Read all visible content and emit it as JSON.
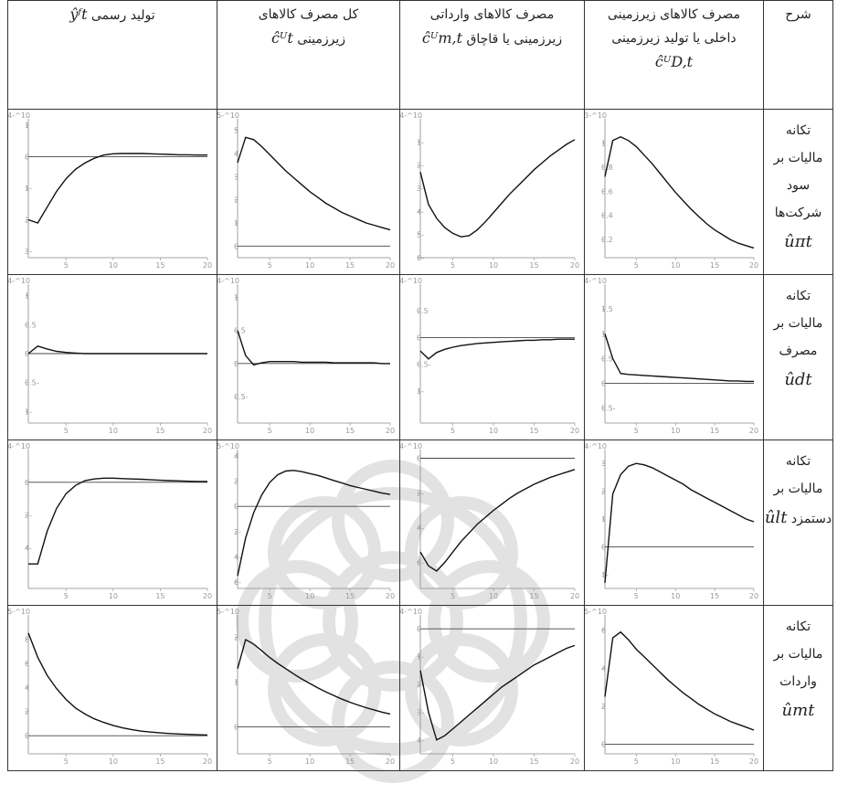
{
  "table": {
    "headers": {
      "description": "شرح",
      "domestic": {
        "lines": [
          "مصرف کالاهای زیرزمینی",
          "داخلی یا تولید زیرزمینی"
        ],
        "symbol": "ĉᵁD,t"
      },
      "imported": {
        "lines": [
          "مصرف کالاهای وارداتی",
          "زیرزمینی یا قاچاق"
        ],
        "symbol": "ĉᵁm,t"
      },
      "total": {
        "lines": [
          "کل مصرف کالاهای",
          "زیرزمینی"
        ],
        "symbol": "ĉᵁt"
      },
      "official": {
        "lines": [
          "تولید رسمی"
        ],
        "symbol": "ŷᶠt"
      }
    },
    "rows": [
      {
        "label_lines": [
          "تکانه",
          "مالیات بر",
          "سود",
          "شرکت‌ها"
        ],
        "symbol": "ûπt"
      },
      {
        "label_lines": [
          "تکانه",
          "مالیات بر",
          "مصرف"
        ],
        "symbol": "ûdt"
      },
      {
        "label_lines": [
          "تکانه",
          "مالیات بر",
          "دستمزد"
        ],
        "symbol": "ûlt"
      },
      {
        "label_lines": [
          "تکانه",
          "مالیات بر",
          "واردات"
        ],
        "symbol": "ûmt"
      }
    ]
  },
  "chart_data": [
    {
      "type": "line",
      "shock": "corporate profit tax",
      "variable": "domestic underground consumption",
      "scale": "10^-3",
      "x": [
        1,
        2,
        3,
        4,
        5,
        6,
        7,
        8,
        9,
        10,
        11,
        12,
        13,
        14,
        15,
        16,
        17,
        18,
        19,
        20
      ],
      "y": [
        0.72,
        1.02,
        1.05,
        1.02,
        0.97,
        0.9,
        0.83,
        0.75,
        0.67,
        0.59,
        0.52,
        0.45,
        0.39,
        0.33,
        0.28,
        0.24,
        0.2,
        0.17,
        0.15,
        0.13
      ],
      "ylim": [
        0.05,
        1.2
      ],
      "yticks": [
        0.2,
        0.4,
        0.6,
        0.8,
        1
      ],
      "xticks": [
        5,
        10,
        15,
        20
      ],
      "zero_line": false
    },
    {
      "type": "line",
      "shock": "corporate profit tax",
      "variable": "imported underground consumption",
      "scale": "10^-4",
      "x": [
        1,
        2,
        3,
        4,
        5,
        6,
        7,
        8,
        9,
        10,
        11,
        12,
        13,
        14,
        15,
        16,
        17,
        18,
        19,
        20
      ],
      "y": [
        -2.3,
        -3.7,
        -4.3,
        -4.7,
        -4.95,
        -5.1,
        -5.05,
        -4.8,
        -4.45,
        -4.05,
        -3.65,
        -3.25,
        -2.9,
        -2.55,
        -2.2,
        -1.9,
        -1.6,
        -1.35,
        -1.1,
        -0.9
      ],
      "ylim": [
        -6,
        0
      ],
      "yticks": [
        -6,
        -5,
        -4,
        -3,
        -2,
        -1
      ],
      "xticks": [
        5,
        10,
        15,
        20
      ],
      "zero_line": false
    },
    {
      "type": "line",
      "shock": "corporate profit tax",
      "variable": "total underground consumption",
      "scale": "10^-5",
      "x": [
        1,
        2,
        3,
        4,
        5,
        6,
        7,
        8,
        9,
        10,
        11,
        12,
        13,
        14,
        15,
        16,
        17,
        18,
        19,
        20
      ],
      "y": [
        3.6,
        4.7,
        4.6,
        4.3,
        3.95,
        3.6,
        3.25,
        2.95,
        2.65,
        2.35,
        2.1,
        1.85,
        1.65,
        1.45,
        1.3,
        1.15,
        1,
        0.9,
        0.8,
        0.7
      ],
      "ylim": [
        -0.5,
        5.5
      ],
      "yticks": [
        0,
        1,
        2,
        3,
        4,
        5
      ],
      "xticks": [
        5,
        10,
        15,
        20
      ],
      "zero_line": true
    },
    {
      "type": "line",
      "shock": "corporate profit tax",
      "variable": "official output",
      "scale": "10^-4",
      "x": [
        1,
        2,
        3,
        4,
        5,
        6,
        7,
        8,
        9,
        10,
        11,
        12,
        13,
        14,
        15,
        16,
        17,
        18,
        19,
        20
      ],
      "y": [
        -2,
        -2.1,
        -1.6,
        -1.1,
        -0.7,
        -0.4,
        -0.2,
        -0.05,
        0.05,
        0.09,
        0.1,
        0.1,
        0.1,
        0.09,
        0.08,
        0.07,
        0.06,
        0.06,
        0.05,
        0.05
      ],
      "ylim": [
        -3.2,
        1.2
      ],
      "yticks": [
        -3,
        -2,
        -1,
        0,
        1
      ],
      "xticks": [
        5,
        10,
        15,
        20
      ],
      "zero_line": true
    },
    {
      "type": "line",
      "shock": "consumption tax",
      "variable": "domestic underground consumption",
      "scale": "10^-4",
      "x": [
        1,
        2,
        3,
        4,
        5,
        6,
        7,
        8,
        9,
        10,
        11,
        12,
        13,
        14,
        15,
        16,
        17,
        18,
        19,
        20
      ],
      "y": [
        1,
        0.5,
        0.2,
        0.18,
        0.17,
        0.16,
        0.15,
        0.14,
        0.13,
        0.12,
        0.11,
        0.1,
        0.09,
        0.08,
        0.07,
        0.06,
        0.05,
        0.05,
        0.04,
        0.04
      ],
      "ylim": [
        -0.8,
        2
      ],
      "yticks": [
        -0.5,
        0,
        0.5,
        1,
        1.5
      ],
      "xticks": [
        5,
        10,
        15,
        20
      ],
      "zero_line": true
    },
    {
      "type": "line",
      "shock": "consumption tax",
      "variable": "imported underground consumption",
      "scale": "10^-4",
      "x": [
        1,
        2,
        3,
        4,
        5,
        6,
        7,
        8,
        9,
        10,
        11,
        12,
        13,
        14,
        15,
        16,
        17,
        18,
        19,
        20
      ],
      "y": [
        -0.25,
        -0.4,
        -0.28,
        -0.22,
        -0.18,
        -0.15,
        -0.13,
        -0.11,
        -0.1,
        -0.09,
        -0.08,
        -0.07,
        -0.06,
        -0.05,
        -0.05,
        -0.04,
        -0.04,
        -0.03,
        -0.03,
        -0.03
      ],
      "ylim": [
        -1.6,
        1
      ],
      "yticks": [
        -1,
        -0.5,
        0,
        0.5
      ],
      "xticks": [
        5,
        10,
        15,
        20
      ],
      "zero_line": true
    },
    {
      "type": "line",
      "shock": "consumption tax",
      "variable": "total underground consumption",
      "scale": "10^-4",
      "x": [
        1,
        2,
        3,
        4,
        5,
        6,
        7,
        8,
        9,
        10,
        11,
        12,
        13,
        14,
        15,
        16,
        17,
        18,
        19,
        20
      ],
      "y": [
        0.5,
        0.12,
        -0.02,
        0.01,
        0.03,
        0.03,
        0.03,
        0.03,
        0.02,
        0.02,
        0.02,
        0.02,
        0.01,
        0.01,
        0.01,
        0.01,
        0.01,
        0.01,
        0,
        0
      ],
      "ylim": [
        -0.9,
        1.2
      ],
      "yticks": [
        -0.5,
        0,
        0.5,
        1
      ],
      "xticks": [
        5,
        10,
        15,
        20
      ],
      "zero_line": true
    },
    {
      "type": "line",
      "shock": "consumption tax",
      "variable": "official output",
      "scale": "10^-4",
      "x": [
        1,
        2,
        3,
        4,
        5,
        6,
        7,
        8,
        9,
        10,
        11,
        12,
        13,
        14,
        15,
        16,
        17,
        18,
        19,
        20
      ],
      "y": [
        0,
        0.13,
        0.08,
        0.04,
        0.02,
        0.01,
        0,
        0,
        0,
        0,
        0,
        0,
        0,
        0,
        0,
        0,
        0,
        0,
        0,
        0
      ],
      "ylim": [
        -1.2,
        1.2
      ],
      "yticks": [
        -1,
        -0.5,
        0,
        0.5,
        1
      ],
      "xticks": [
        5,
        10,
        15,
        20
      ],
      "zero_line": true
    },
    {
      "type": "line",
      "shock": "wage tax",
      "variable": "domestic underground consumption",
      "scale": "10^-4",
      "x": [
        1,
        2,
        3,
        4,
        5,
        6,
        7,
        8,
        9,
        10,
        11,
        12,
        13,
        14,
        15,
        16,
        17,
        18,
        19,
        20
      ],
      "y": [
        -1.3,
        1.9,
        2.6,
        2.9,
        3,
        2.95,
        2.85,
        2.7,
        2.55,
        2.4,
        2.25,
        2.05,
        1.9,
        1.75,
        1.6,
        1.45,
        1.3,
        1.15,
        1,
        0.9
      ],
      "ylim": [
        -1.5,
        3.5
      ],
      "yticks": [
        -1,
        0,
        1,
        2,
        3
      ],
      "xticks": [
        5,
        10,
        15,
        20
      ],
      "zero_line": true
    },
    {
      "type": "line",
      "shock": "wage tax",
      "variable": "imported underground consumption",
      "scale": "10^-4",
      "x": [
        1,
        2,
        3,
        4,
        5,
        6,
        7,
        8,
        9,
        10,
        11,
        12,
        13,
        14,
        15,
        16,
        17,
        18,
        19,
        20
      ],
      "y": [
        -5.4,
        -6.2,
        -6.5,
        -6,
        -5.4,
        -4.8,
        -4.3,
        -3.8,
        -3.4,
        -3,
        -2.65,
        -2.3,
        -2,
        -1.75,
        -1.5,
        -1.3,
        -1.1,
        -0.95,
        -0.8,
        -0.65
      ],
      "ylim": [
        -7.5,
        0.5
      ],
      "yticks": [
        -6,
        -4,
        -2,
        0
      ],
      "xticks": [
        5,
        10,
        15,
        20
      ],
      "zero_line": true
    },
    {
      "type": "line",
      "shock": "wage tax",
      "variable": "total underground consumption",
      "scale": "10^-5",
      "x": [
        1,
        2,
        3,
        4,
        5,
        6,
        7,
        8,
        9,
        10,
        11,
        12,
        13,
        14,
        15,
        16,
        17,
        18,
        19,
        20
      ],
      "y": [
        -5.5,
        -2.5,
        -0.5,
        0.9,
        1.9,
        2.5,
        2.8,
        2.85,
        2.75,
        2.6,
        2.45,
        2.25,
        2.05,
        1.85,
        1.65,
        1.5,
        1.35,
        1.2,
        1.05,
        0.95
      ],
      "ylim": [
        -6.5,
        4.5
      ],
      "yticks": [
        -6,
        -4,
        -2,
        0,
        2,
        4
      ],
      "xticks": [
        5,
        10,
        15,
        20
      ],
      "zero_line": true
    },
    {
      "type": "line",
      "shock": "wage tax",
      "variable": "official output",
      "scale": "10^-4",
      "x": [
        1,
        2,
        3,
        4,
        5,
        6,
        7,
        8,
        9,
        10,
        11,
        12,
        13,
        14,
        15,
        16,
        17,
        18,
        19,
        20
      ],
      "y": [
        -5,
        -5,
        -3,
        -1.6,
        -0.7,
        -0.2,
        0.1,
        0.2,
        0.25,
        0.25,
        0.22,
        0.2,
        0.18,
        0.15,
        0.12,
        0.1,
        0.08,
        0.06,
        0.05,
        0.04
      ],
      "ylim": [
        -6.5,
        2
      ],
      "yticks": [
        -4,
        -2,
        0
      ],
      "xticks": [
        5,
        10,
        15,
        20
      ],
      "zero_line": true
    },
    {
      "type": "line",
      "shock": "import tax",
      "variable": "domestic underground consumption",
      "scale": "10^-5",
      "x": [
        1,
        2,
        3,
        4,
        5,
        6,
        7,
        8,
        9,
        10,
        11,
        12,
        13,
        14,
        15,
        16,
        17,
        18,
        19,
        20
      ],
      "y": [
        2.5,
        5.6,
        5.9,
        5.5,
        5,
        4.6,
        4.2,
        3.8,
        3.4,
        3.05,
        2.7,
        2.4,
        2.1,
        1.85,
        1.6,
        1.4,
        1.2,
        1.05,
        0.9,
        0.75
      ],
      "ylim": [
        -0.5,
        6.8
      ],
      "yticks": [
        0,
        2,
        4,
        6
      ],
      "xticks": [
        5,
        10,
        15,
        20
      ],
      "zero_line": true
    },
    {
      "type": "line",
      "shock": "import tax",
      "variable": "imported underground consumption",
      "scale": "10^-4",
      "x": [
        1,
        2,
        3,
        4,
        5,
        6,
        7,
        8,
        9,
        10,
        11,
        12,
        13,
        14,
        15,
        16,
        17,
        18,
        19,
        20
      ],
      "y": [
        -1.5,
        -3,
        -4,
        -3.85,
        -3.6,
        -3.35,
        -3.1,
        -2.85,
        -2.6,
        -2.35,
        -2.1,
        -1.9,
        -1.7,
        -1.5,
        -1.3,
        -1.15,
        -1,
        -0.85,
        -0.7,
        -0.6
      ],
      "ylim": [
        -4.5,
        0.5
      ],
      "yticks": [
        -4,
        -3,
        -2,
        -1,
        0
      ],
      "xticks": [
        5,
        10,
        15,
        20
      ],
      "zero_line": true
    },
    {
      "type": "line",
      "shock": "import tax",
      "variable": "total underground consumption",
      "scale": "10^-5",
      "x": [
        1,
        2,
        3,
        4,
        5,
        6,
        7,
        8,
        9,
        10,
        11,
        12,
        13,
        14,
        15,
        16,
        17,
        18,
        19,
        20
      ],
      "y": [
        1.3,
        1.95,
        1.85,
        1.7,
        1.55,
        1.42,
        1.3,
        1.18,
        1.07,
        0.97,
        0.87,
        0.78,
        0.7,
        0.62,
        0.55,
        0.49,
        0.43,
        0.38,
        0.33,
        0.29
      ],
      "ylim": [
        -0.6,
        2.5
      ],
      "yticks": [
        0,
        1,
        2
      ],
      "xticks": [
        5,
        10,
        15,
        20
      ],
      "zero_line": true
    },
    {
      "type": "line",
      "shock": "import tax",
      "variable": "official output",
      "scale": "10^-5",
      "x": [
        1,
        2,
        3,
        4,
        5,
        6,
        7,
        8,
        9,
        10,
        11,
        12,
        13,
        14,
        15,
        16,
        17,
        18,
        19,
        20
      ],
      "y": [
        8.5,
        6.5,
        5,
        3.9,
        3,
        2.3,
        1.8,
        1.4,
        1.1,
        0.85,
        0.65,
        0.5,
        0.38,
        0.3,
        0.23,
        0.18,
        0.14,
        0.11,
        0.08,
        0.06
      ],
      "ylim": [
        -1.5,
        10
      ],
      "yticks": [
        0,
        2,
        4,
        6,
        8
      ],
      "xticks": [
        5,
        10,
        15,
        20
      ],
      "zero_line": true
    }
  ]
}
